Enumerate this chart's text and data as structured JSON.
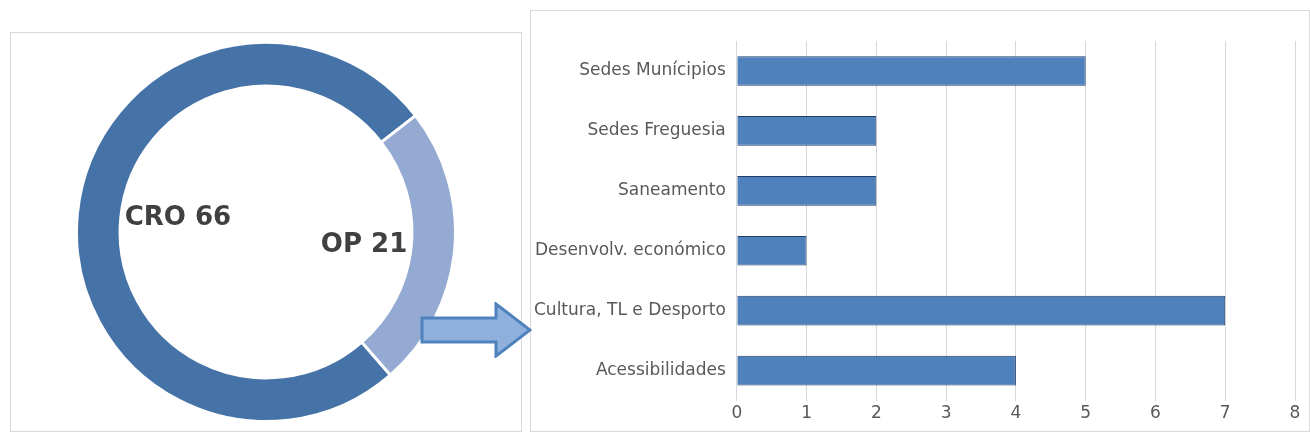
{
  "chart_data": [
    {
      "type": "donut",
      "categories": [
        "CRO",
        "OP"
      ],
      "values": [
        66,
        21
      ],
      "colors": [
        "#4673a7",
        "#95aad2"
      ],
      "data_labels": true,
      "legend": false
    },
    {
      "type": "bar",
      "orientation": "horizontal",
      "categories": [
        "Sedes Munícipios",
        "Sedes Freguesia",
        "Saneamento",
        "Desenvolv. económico",
        "Cultura, TL e Desporto",
        "Acessibilidades"
      ],
      "values": [
        5,
        2,
        2,
        1,
        7,
        4
      ],
      "color": "#4f81bd",
      "xlim": [
        0,
        8
      ],
      "xticks": [
        0,
        1,
        2,
        3,
        4,
        5,
        6,
        7,
        8
      ],
      "grid": "x",
      "legend": false
    }
  ]
}
